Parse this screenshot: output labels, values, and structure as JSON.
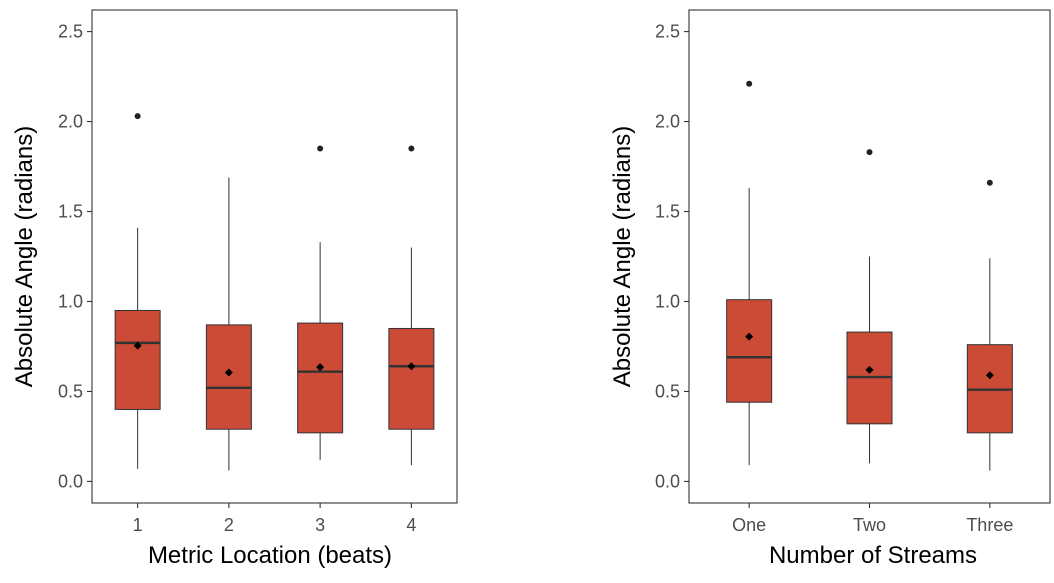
{
  "colors": {
    "box_fill": "#cb4b37",
    "box_line": "#333333",
    "panel_border": "#333333",
    "point": "#222222"
  },
  "chart_data": [
    {
      "type": "box",
      "xlabel": "Metric Location (beats)",
      "ylabel": "Absolute Angle (radians)",
      "ylim": [
        -0.12,
        2.62
      ],
      "yticks": [
        0.0,
        0.5,
        1.0,
        1.5,
        2.0,
        2.5
      ],
      "ytick_labels": [
        "0.0",
        "0.5",
        "1.0",
        "1.5",
        "2.0",
        "2.5"
      ],
      "grid": false,
      "mean_marker": "diamond",
      "categories": [
        "1",
        "2",
        "3",
        "4"
      ],
      "boxes": [
        {
          "whisker_low": 0.07,
          "q1": 0.4,
          "median": 0.77,
          "q3": 0.95,
          "whisker_high": 1.41,
          "mean": 0.755,
          "outliers": [
            2.03
          ]
        },
        {
          "whisker_low": 0.06,
          "q1": 0.29,
          "median": 0.52,
          "q3": 0.87,
          "whisker_high": 1.69,
          "mean": 0.605,
          "outliers": []
        },
        {
          "whisker_low": 0.12,
          "q1": 0.27,
          "median": 0.61,
          "q3": 0.88,
          "whisker_high": 1.33,
          "mean": 0.635,
          "outliers": [
            1.85
          ]
        },
        {
          "whisker_low": 0.09,
          "q1": 0.29,
          "median": 0.64,
          "q3": 0.85,
          "whisker_high": 1.3,
          "mean": 0.64,
          "outliers": [
            1.85
          ]
        }
      ]
    },
    {
      "type": "box",
      "xlabel": "Number of Streams",
      "ylabel": "Absolute Angle (radians)",
      "ylim": [
        -0.12,
        2.62
      ],
      "yticks": [
        0.0,
        0.5,
        1.0,
        1.5,
        2.0,
        2.5
      ],
      "ytick_labels": [
        "0.0",
        "0.5",
        "1.0",
        "1.5",
        "2.0",
        "2.5"
      ],
      "grid": false,
      "mean_marker": "diamond",
      "categories": [
        "One",
        "Two",
        "Three"
      ],
      "boxes": [
        {
          "whisker_low": 0.09,
          "q1": 0.44,
          "median": 0.69,
          "q3": 1.01,
          "whisker_high": 1.63,
          "mean": 0.805,
          "outliers": [
            2.21
          ]
        },
        {
          "whisker_low": 0.1,
          "q1": 0.32,
          "median": 0.58,
          "q3": 0.83,
          "whisker_high": 1.25,
          "mean": 0.62,
          "outliers": [
            1.83
          ]
        },
        {
          "whisker_low": 0.06,
          "q1": 0.27,
          "median": 0.51,
          "q3": 0.76,
          "whisker_high": 1.24,
          "mean": 0.59,
          "outliers": [
            1.66
          ]
        }
      ]
    }
  ]
}
